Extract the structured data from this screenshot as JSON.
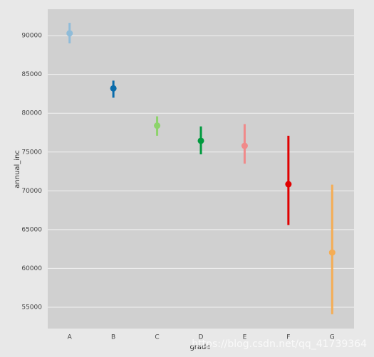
{
  "chart_data": {
    "type": "point",
    "xlabel": "grade",
    "ylabel": "annual_inc",
    "categories": [
      "A",
      "B",
      "C",
      "D",
      "E",
      "F",
      "G"
    ],
    "values": [
      90300,
      83200,
      78400,
      76450,
      75800,
      70850,
      62050
    ],
    "ci_low": [
      89000,
      82000,
      77100,
      74700,
      73500,
      65600,
      54100
    ],
    "ci_high": [
      91650,
      84200,
      79600,
      78300,
      78600,
      77100,
      70800
    ],
    "colors": [
      "#8fbcd9",
      "#0a6cab",
      "#8dd36b",
      "#009a3e",
      "#f08a8a",
      "#e00000",
      "#f5ad55"
    ],
    "ylim": [
      52250,
      93400
    ],
    "yticks": [
      55000,
      60000,
      65000,
      70000,
      75000,
      80000,
      85000,
      90000
    ],
    "grid": true,
    "watermark": "https://blog.csdn.net/qq_41739364"
  }
}
